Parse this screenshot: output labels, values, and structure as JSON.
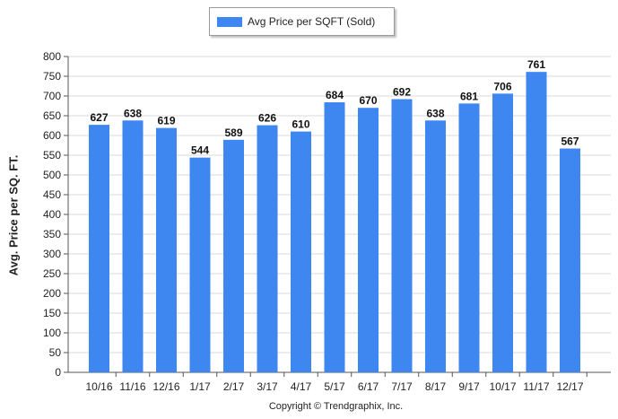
{
  "chart_data": {
    "type": "bar",
    "legend": {
      "label": "Avg Price per SQFT (Sold)",
      "placement": "top-center"
    },
    "series": [
      {
        "name": "Avg Price per SQFT (Sold)",
        "color": "#3e86f0",
        "values": [
          627,
          638,
          619,
          544,
          589,
          626,
          610,
          684,
          670,
          692,
          638,
          681,
          706,
          761,
          567
        ]
      }
    ],
    "categories": [
      "10/16",
      "11/16",
      "12/16",
      "1/17",
      "2/17",
      "3/17",
      "4/17",
      "5/17",
      "6/17",
      "7/17",
      "8/17",
      "9/17",
      "10/17",
      "11/17",
      "12/17"
    ],
    "data_labels": [
      "627",
      "638",
      "619",
      "544",
      "589",
      "626",
      "610",
      "684",
      "670",
      "692",
      "638",
      "681",
      "706",
      "761",
      "567"
    ],
    "ylabel": "Avg. Price per SQ. FT.",
    "xlabel": "",
    "ylim": [
      0,
      800
    ],
    "yticks": [
      "0",
      "50",
      "100",
      "150",
      "200",
      "250",
      "300",
      "350",
      "400",
      "450",
      "500",
      "550",
      "600",
      "650",
      "700",
      "750",
      "800"
    ],
    "grid": true
  },
  "footer": {
    "copyright": "Copyright © Trendgraphix, Inc."
  }
}
